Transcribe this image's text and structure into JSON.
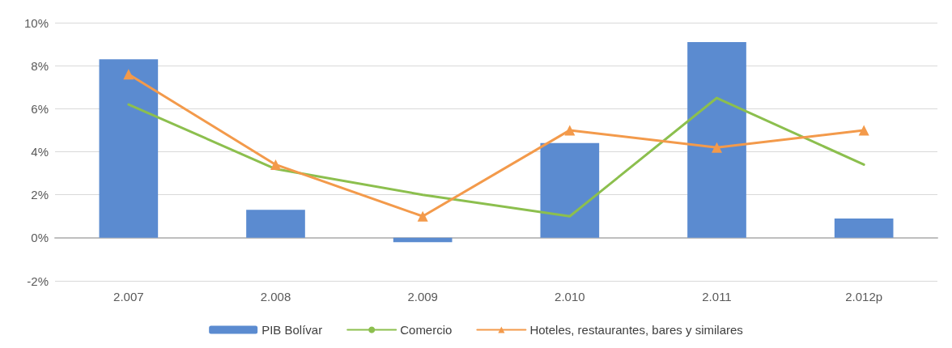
{
  "chart_data": {
    "type": "bar",
    "categories": [
      "2.007",
      "2.008",
      "2.009",
      "2.010",
      "2.011",
      "2.012p"
    ],
    "series": [
      {
        "name": "PIB Bolívar",
        "color": "#5b8bd0",
        "values": [
          8.3,
          1.3,
          -0.2,
          4.4,
          9.1,
          0.9
        ]
      },
      {
        "name": "Comercio",
        "type": "line",
        "color": "#8cbf4e",
        "marker": "none",
        "values": [
          6.2,
          3.2,
          2.0,
          1.0,
          6.5,
          3.4
        ]
      },
      {
        "name": "Hoteles, restaurantes, bares y similares",
        "type": "line",
        "color": "#f39a4b",
        "marker": "triangle",
        "values": [
          7.6,
          3.4,
          1.0,
          5.0,
          4.2,
          5.0
        ]
      }
    ],
    "ylim": [
      -2,
      10
    ],
    "yticks": [
      {
        "value": -2,
        "label": "-2%"
      },
      {
        "value": 0,
        "label": "0%"
      },
      {
        "value": 2,
        "label": "2%"
      },
      {
        "value": 4,
        "label": "4%"
      },
      {
        "value": 6,
        "label": "6%"
      },
      {
        "value": 8,
        "label": "8%"
      },
      {
        "value": 10,
        "label": "10%"
      }
    ],
    "grid": "y",
    "legend": "bottom",
    "line_style": "solid"
  }
}
